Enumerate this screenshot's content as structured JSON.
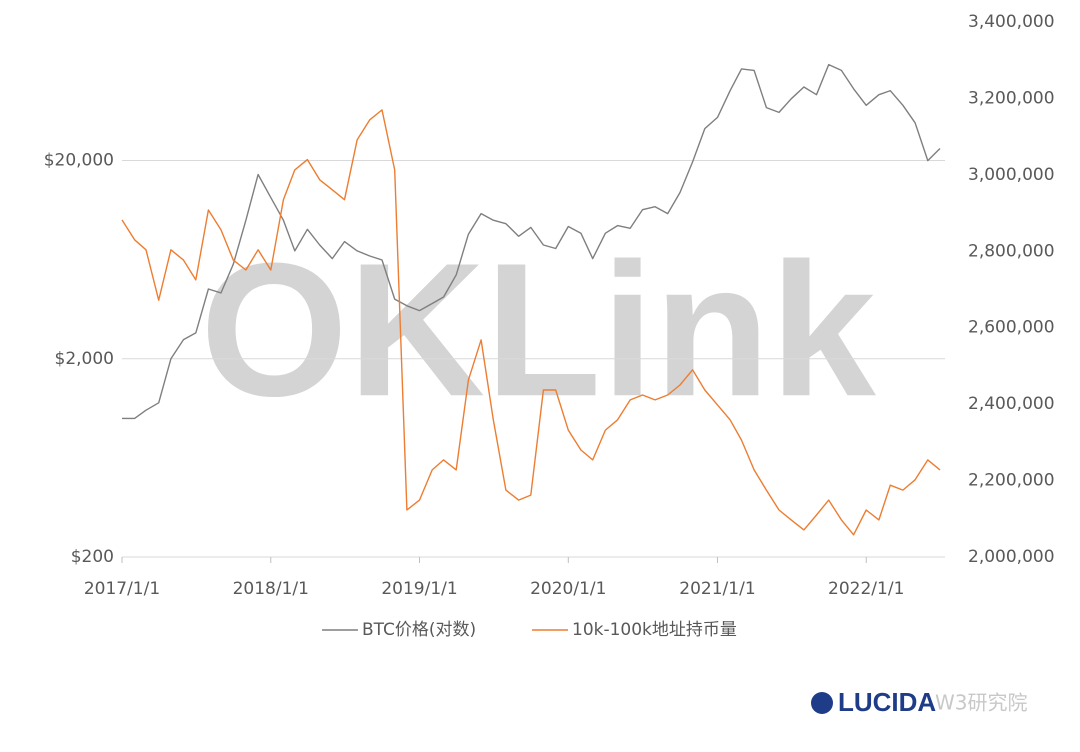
{
  "chart_data": {
    "type": "line",
    "watermark": "OKLink",
    "logo": "LUCIDA",
    "footer_text": "W3研究院",
    "x": [
      "2017/1/1",
      "2017/2/1",
      "2017/3/1",
      "2017/4/1",
      "2017/5/1",
      "2017/6/1",
      "2017/7/1",
      "2017/8/1",
      "2017/9/1",
      "2017/10/1",
      "2017/11/1",
      "2017/12/1",
      "2018/1/1",
      "2018/2/1",
      "2018/3/1",
      "2018/4/1",
      "2018/5/1",
      "2018/6/1",
      "2018/7/1",
      "2018/8/1",
      "2018/9/1",
      "2018/10/1",
      "2018/11/1",
      "2018/12/1",
      "2019/1/1",
      "2019/2/1",
      "2019/3/1",
      "2019/4/1",
      "2019/5/1",
      "2019/6/1",
      "2019/7/1",
      "2019/8/1",
      "2019/9/1",
      "2019/10/1",
      "2019/11/1",
      "2019/12/1",
      "2020/1/1",
      "2020/2/1",
      "2020/3/1",
      "2020/4/1",
      "2020/5/1",
      "2020/6/1",
      "2020/7/1",
      "2020/8/1",
      "2020/9/1",
      "2020/10/1",
      "2020/11/1",
      "2020/12/1",
      "2021/1/1",
      "2021/2/1",
      "2021/3/1",
      "2021/4/1",
      "2021/5/1",
      "2021/6/1",
      "2021/7/1",
      "2021/8/1",
      "2021/9/1",
      "2021/10/1",
      "2021/11/1",
      "2021/12/1",
      "2022/1/1",
      "2022/2/1",
      "2022/3/1",
      "2022/4/1",
      "2022/5/1",
      "2022/6/1",
      "2022/7/1"
    ],
    "xlim": [
      "2017/1/1",
      "2022/7/1"
    ],
    "xticks": [
      "2017/1/1",
      "2018/1/1",
      "2019/1/1",
      "2020/1/1",
      "2021/1/1",
      "2022/1/1"
    ],
    "ylim": [
      200,
      100000
    ],
    "ylog": true,
    "yticks": [
      {
        "value": 200,
        "label": "$200"
      },
      {
        "value": 2000,
        "label": "$2,000"
      },
      {
        "value": 20000,
        "label": "$20,000"
      }
    ],
    "y2lim": [
      2000000,
      3400000
    ],
    "y2ticks": [
      {
        "value": 2000000,
        "label": "2,000,000"
      },
      {
        "value": 2200000,
        "label": "2,200,000"
      },
      {
        "value": 2400000,
        "label": "2,400,000"
      },
      {
        "value": 2600000,
        "label": "2,600,000"
      },
      {
        "value": 2800000,
        "label": "2,800,000"
      },
      {
        "value": 3000000,
        "label": "3,000,000"
      },
      {
        "value": 3200000,
        "label": "3,200,000"
      },
      {
        "value": 3400000,
        "label": "3,400,000"
      }
    ],
    "grid": true,
    "legend": "bottom",
    "series": [
      {
        "name": "BTC价格(对数)",
        "color": "#7f7f7f",
        "axis": "y",
        "values": [
          1000,
          1000,
          1100,
          1200,
          2000,
          2500,
          2700,
          4500,
          4300,
          6000,
          10000,
          17000,
          13000,
          10000,
          7000,
          9000,
          7500,
          6400,
          7800,
          7000,
          6600,
          6300,
          4000,
          3700,
          3500,
          3800,
          4100,
          5300,
          8500,
          10800,
          10000,
          9600,
          8300,
          9200,
          7500,
          7200,
          9300,
          8600,
          6400,
          8600,
          9400,
          9100,
          11300,
          11700,
          10800,
          13800,
          19700,
          29000,
          33000,
          45000,
          58000,
          57000,
          37000,
          35000,
          41000,
          47000,
          43000,
          61000,
          57000,
          46000,
          38000,
          43000,
          45000,
          38000,
          31000,
          20000,
          23000
        ]
      },
      {
        "name": "10k-100k地址持币量",
        "color": "#ed7d31",
        "axis": "y2",
        "values": [
          2882000,
          2830000,
          2804000,
          2672000,
          2804000,
          2777000,
          2725000,
          2908000,
          2856000,
          2777000,
          2751000,
          2804000,
          2751000,
          2935000,
          3013000,
          3040000,
          2987000,
          2961000,
          2935000,
          3092000,
          3144000,
          3170000,
          3013000,
          2123000,
          2149000,
          2228000,
          2254000,
          2228000,
          2463000,
          2568000,
          2359000,
          2175000,
          2149000,
          2162000,
          2437000,
          2437000,
          2332000,
          2280000,
          2254000,
          2332000,
          2359000,
          2411000,
          2424000,
          2411000,
          2424000,
          2450000,
          2490000,
          2437000,
          2398000,
          2359000,
          2306000,
          2228000,
          2175000,
          2123000,
          2097000,
          2071000,
          2110000,
          2149000,
          2097000,
          2058000,
          2123000,
          2097000,
          2188000,
          2175000,
          2202000,
          2254000,
          2228000
        ]
      }
    ]
  }
}
